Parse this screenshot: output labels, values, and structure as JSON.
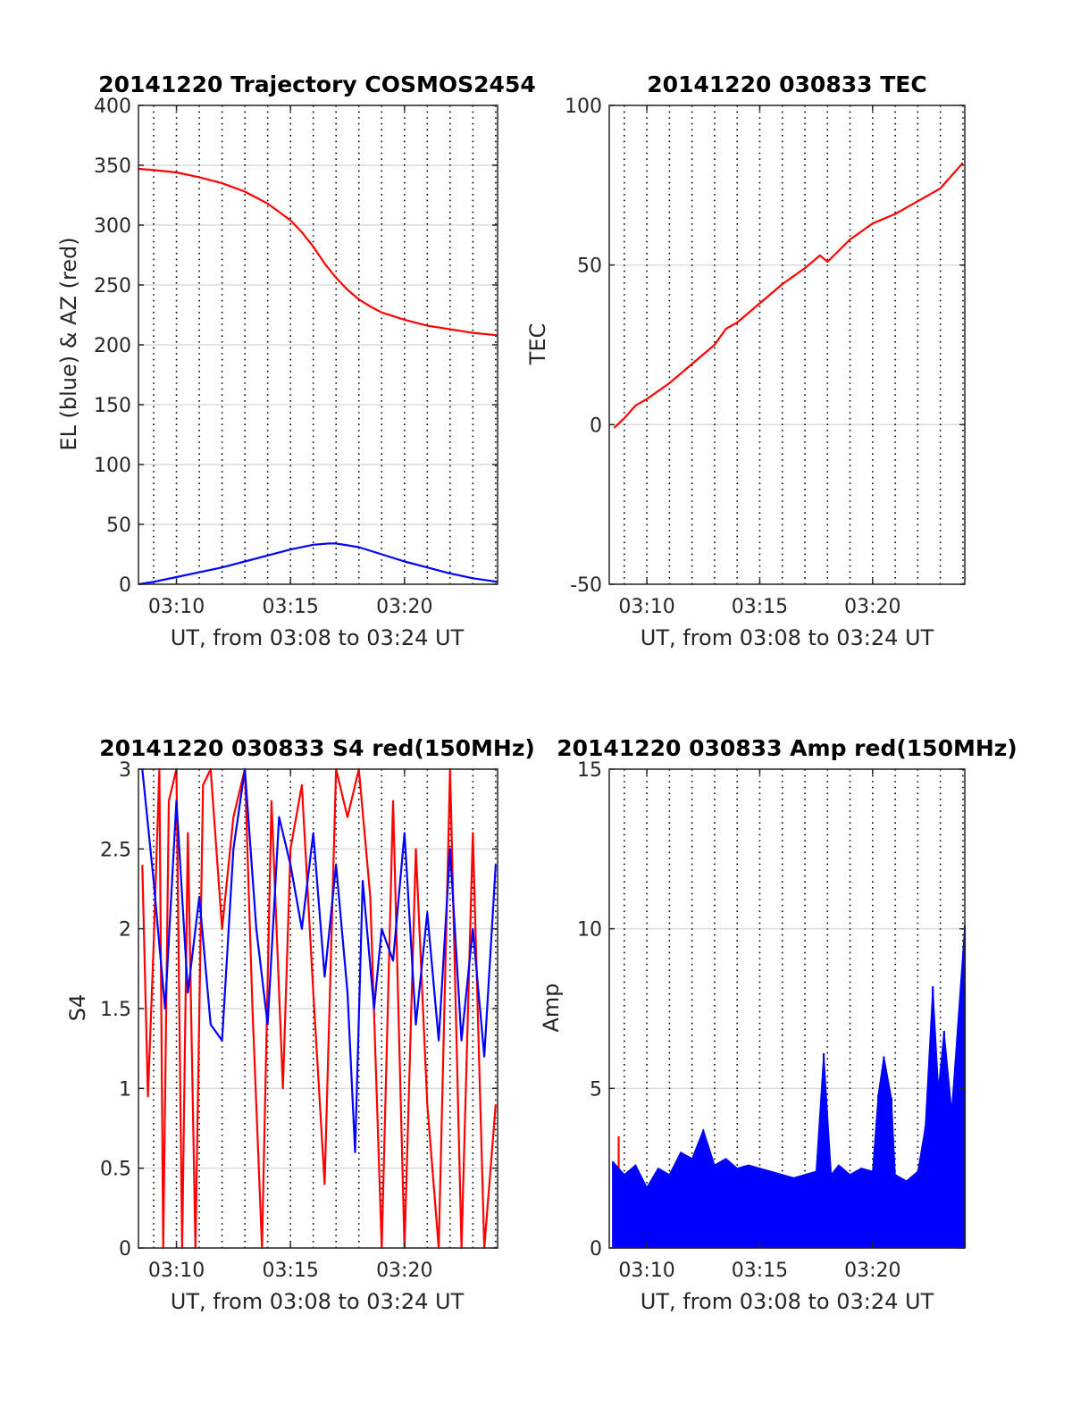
{
  "colors": {
    "red": "#ff0000",
    "blue": "#0000ff",
    "grid_solid": "#dcdcdc",
    "grid_dotted": "#000000",
    "axis": "#262626"
  },
  "chart_data": [
    {
      "type": "line",
      "title": "20141220 Trajectory COSMOS2454",
      "xlabel": "UT, from 03:08 to 03:24 UT",
      "ylabel": "EL (blue) & AZ (red)",
      "xlim": [
        "03:08:20",
        "03:24:05"
      ],
      "ylim": [
        0,
        400
      ],
      "x_ticks": [
        "03:10",
        "03:15",
        "03:20"
      ],
      "y_ticks": [
        "0",
        "50",
        "100",
        "150",
        "200",
        "250",
        "300",
        "350",
        "400"
      ],
      "x_dotted_grid": "every 1 minute",
      "series": [
        {
          "color": "red",
          "x": [
            "03:08:20",
            "03:09:00",
            "03:10:00",
            "03:11:00",
            "03:12:00",
            "03:13:00",
            "03:14:00",
            "03:15:00",
            "03:15:30",
            "03:16:00",
            "03:16:30",
            "03:17:00",
            "03:17:30",
            "03:18:00",
            "03:18:30",
            "03:19:00",
            "03:20:00",
            "03:21:00",
            "03:22:00",
            "03:23:00",
            "03:24:05"
          ],
          "values": [
            347,
            346,
            344,
            340,
            335,
            328,
            318,
            304,
            294,
            282,
            268,
            256,
            246,
            238,
            232,
            227,
            221,
            216,
            213,
            210,
            208
          ]
        },
        {
          "color": "blue",
          "x": [
            "03:08:20",
            "03:09:00",
            "03:10:00",
            "03:11:00",
            "03:12:00",
            "03:13:00",
            "03:14:00",
            "03:15:00",
            "03:16:00",
            "03:16:40",
            "03:17:00",
            "03:18:00",
            "03:19:00",
            "03:20:00",
            "03:21:00",
            "03:22:00",
            "03:23:00",
            "03:24:05"
          ],
          "values": [
            0,
            2,
            6,
            10,
            14,
            19,
            24,
            29,
            33,
            34,
            34,
            31,
            25,
            19,
            14,
            9,
            5,
            2
          ]
        }
      ]
    },
    {
      "type": "line",
      "title": "20141220 030833 TEC",
      "xlabel": "UT, from 03:08 to 03:24 UT",
      "ylabel": "TEC",
      "xlim": [
        "03:08:20",
        "03:24:05"
      ],
      "ylim": [
        -50,
        100
      ],
      "x_ticks": [
        "03:10",
        "03:15",
        "03:20"
      ],
      "y_ticks": [
        "-50",
        "0",
        "50",
        "100"
      ],
      "x_dotted_grid": "every 1 minute",
      "series": [
        {
          "color": "red",
          "x": [
            "03:08:33",
            "03:09:00",
            "03:09:30",
            "03:10:00",
            "03:11:00",
            "03:12:00",
            "03:13:00",
            "03:13:30",
            "03:14:00",
            "03:15:00",
            "03:16:00",
            "03:17:00",
            "03:17:40",
            "03:18:00",
            "03:19:00",
            "03:20:00",
            "03:21:00",
            "03:22:00",
            "03:23:00",
            "03:24:00"
          ],
          "values": [
            -1,
            2,
            6,
            8,
            13,
            19,
            25,
            30,
            32,
            38,
            44,
            49,
            53,
            51,
            58,
            63,
            66,
            70,
            74,
            82
          ]
        }
      ]
    },
    {
      "type": "line",
      "title": "20141220 030833 S4 red(150MHz)",
      "xlabel": "UT, from 03:08 to 03:24 UT",
      "ylabel": "S4",
      "xlim": [
        "03:08:20",
        "03:24:05"
      ],
      "ylim": [
        0,
        3
      ],
      "x_ticks": [
        "03:10",
        "03:15",
        "03:20"
      ],
      "y_ticks": [
        "0",
        "0.5",
        "1",
        "1.5",
        "2",
        "2.5",
        "3"
      ],
      "x_dotted_grid": "every 1 minute",
      "series": [
        {
          "color": "red",
          "x": [
            "03:08:30",
            "03:08:45",
            "03:09:00",
            "03:09:15",
            "03:09:25",
            "03:09:40",
            "03:10:00",
            "03:10:15",
            "03:10:30",
            "03:10:50",
            "03:11:10",
            "03:11:30",
            "03:12:00",
            "03:12:30",
            "03:13:00",
            "03:13:20",
            "03:13:45",
            "03:14:10",
            "03:14:40",
            "03:15:00",
            "03:15:30",
            "03:16:00",
            "03:16:30",
            "03:17:00",
            "03:17:30",
            "03:18:00",
            "03:18:30",
            "03:19:00",
            "03:19:30",
            "03:20:00",
            "03:20:30",
            "03:21:00",
            "03:21:30",
            "03:22:00",
            "03:22:30",
            "03:23:00",
            "03:23:30",
            "03:24:00"
          ],
          "values": [
            2.4,
            0.95,
            1.9,
            3.0,
            0,
            2.8,
            3.0,
            0,
            2.6,
            0,
            2.9,
            3.0,
            2.0,
            2.7,
            3.0,
            1.5,
            0,
            2.8,
            1.0,
            2.5,
            2.9,
            1.6,
            0.4,
            3.0,
            2.7,
            3.0,
            2.2,
            0,
            2.8,
            0,
            2.5,
            0.9,
            0,
            3.0,
            0,
            2.6,
            0,
            0.9
          ]
        },
        {
          "color": "blue",
          "x": [
            "03:08:30",
            "03:09:00",
            "03:09:30",
            "03:10:00",
            "03:10:30",
            "03:11:00",
            "03:11:30",
            "03:12:00",
            "03:12:30",
            "03:13:00",
            "03:13:30",
            "03:14:00",
            "03:14:30",
            "03:15:00",
            "03:15:30",
            "03:16:00",
            "03:16:30",
            "03:17:00",
            "03:17:30",
            "03:17:50",
            "03:18:10",
            "03:18:40",
            "03:19:00",
            "03:19:30",
            "03:20:00",
            "03:20:30",
            "03:21:00",
            "03:21:30",
            "03:22:00",
            "03:22:30",
            "03:23:00",
            "03:23:30",
            "03:24:00"
          ],
          "values": [
            3.0,
            2.3,
            1.5,
            2.8,
            1.6,
            2.2,
            1.4,
            1.3,
            2.5,
            3.0,
            2.0,
            1.4,
            2.7,
            2.4,
            2.0,
            2.6,
            1.7,
            2.4,
            1.6,
            0.6,
            2.3,
            1.5,
            2.0,
            1.8,
            2.6,
            1.4,
            2.1,
            1.3,
            2.5,
            1.3,
            2.0,
            1.2,
            2.4
          ]
        }
      ]
    },
    {
      "type": "bar",
      "title": "20141220 030833 Amp red(150MHz)",
      "xlabel": "UT, from 03:08 to 03:24 UT",
      "ylabel": "Amp",
      "xlim": [
        "03:08:20",
        "03:24:05"
      ],
      "ylim": [
        0,
        15
      ],
      "x_ticks": [
        "03:10",
        "03:15",
        "03:20"
      ],
      "y_ticks": [
        "0",
        "5",
        "10",
        "15"
      ],
      "x_dotted_grid": "every 1 minute",
      "series": [
        {
          "color": "red",
          "x": [
            "03:08:45"
          ],
          "values": [
            3.5
          ]
        },
        {
          "color": "blue",
          "x": [
            "03:08:30",
            "03:09:00",
            "03:09:30",
            "03:10:00",
            "03:10:30",
            "03:11:00",
            "03:11:30",
            "03:12:00",
            "03:12:30",
            "03:13:00",
            "03:13:30",
            "03:14:00",
            "03:14:30",
            "03:15:00",
            "03:15:30",
            "03:16:00",
            "03:16:30",
            "03:17:00",
            "03:17:30",
            "03:17:50",
            "03:18:10",
            "03:18:30",
            "03:19:00",
            "03:19:30",
            "03:20:00",
            "03:20:15",
            "03:20:30",
            "03:20:50",
            "03:21:00",
            "03:21:30",
            "03:22:00",
            "03:22:20",
            "03:22:40",
            "03:22:55",
            "03:23:10",
            "03:23:30",
            "03:24:05"
          ],
          "values": [
            2.7,
            2.3,
            2.6,
            1.9,
            2.5,
            2.3,
            3.0,
            2.8,
            3.7,
            2.6,
            2.8,
            2.5,
            2.6,
            2.5,
            2.4,
            2.3,
            2.2,
            2.3,
            2.4,
            6.1,
            2.3,
            2.6,
            2.3,
            2.5,
            2.4,
            4.8,
            6.0,
            4.7,
            2.3,
            2.1,
            2.4,
            3.8,
            8.2,
            5.0,
            6.8,
            4.3,
            10.1
          ]
        }
      ]
    }
  ]
}
